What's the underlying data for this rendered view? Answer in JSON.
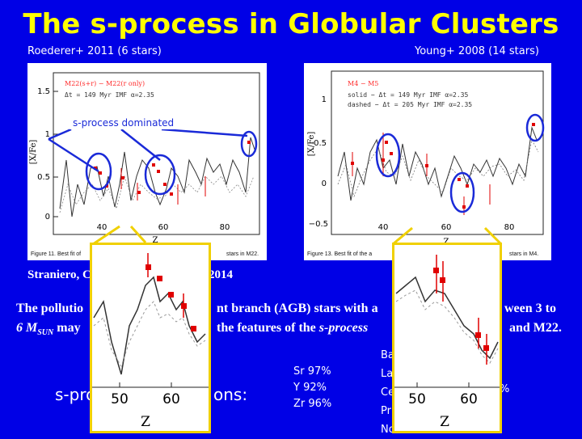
{
  "slide": {
    "title": "The s-process in Globular Clusters",
    "left_ref": "Roederer+ 2011 (6 stars)",
    "right_ref": "Young+ 2008 (14 stars)",
    "annotation": "s-process dominated",
    "caption_ref": "Straniero, C",
    "caption_year": "2014",
    "body_line1_a": "The pollutio",
    "body_line1_b": "nt branch (AGB) stars with a",
    "body_line1_c": "ween 3 to",
    "body_line2_a": "6 M",
    "body_line2_sub": "SUN",
    "body_line2_b": " may",
    "body_line2_c": "the features of the",
    "body_line2_d": "s-process",
    "body_line2_e": "and M22.",
    "contrib_label": "s-pro",
    "contrib_label_end": "ons:",
    "percent_left": [
      "Sr 97%",
      "Y  92%",
      "Zr 96%"
    ],
    "percent_right_frag": [
      "Ba",
      "La",
      "Ce",
      "Pr",
      "Nd"
    ],
    "percent_right_tail": "%"
  },
  "left_panel": {
    "legend1": "M22(s+r) − M22(r only)",
    "legend2": "Δt = 149 Myr   IMF α=2.35",
    "ylabel": "[X/Fe]",
    "xlabel": "Z",
    "yticks": [
      "1.5",
      "1",
      "0.5",
      "0"
    ],
    "xticks": [
      "40",
      "60",
      "80"
    ],
    "caption": "Figure 11. Best fit of",
    "caption_end": "stars in M22."
  },
  "right_panel": {
    "legend1": "M4 − M5",
    "legend2": "solid  − Δt = 149 Myr  IMF α=2.35",
    "legend3": "dashed − Δt = 205 Myr  IMF α=2.35",
    "ylabel": "[X/Fe]",
    "xlabel": "Z",
    "yticks": [
      "1",
      "0.5",
      "0",
      "−0.5"
    ],
    "xticks": [
      "40",
      "60",
      "80"
    ],
    "caption": "Figure 13. Best fit of the a",
    "caption_end": "stars in M4."
  },
  "zoom_left": {
    "xticks": [
      "50",
      "60"
    ],
    "xlabel": "Z"
  },
  "zoom_right": {
    "xticks": [
      "50",
      "60"
    ],
    "xlabel": "Z"
  },
  "colors": {
    "background": "#0000e6",
    "title": "#ffff00",
    "zoom_border": "#f0d000",
    "data_red": "#e00000",
    "circle": "#1a2ad8"
  }
}
